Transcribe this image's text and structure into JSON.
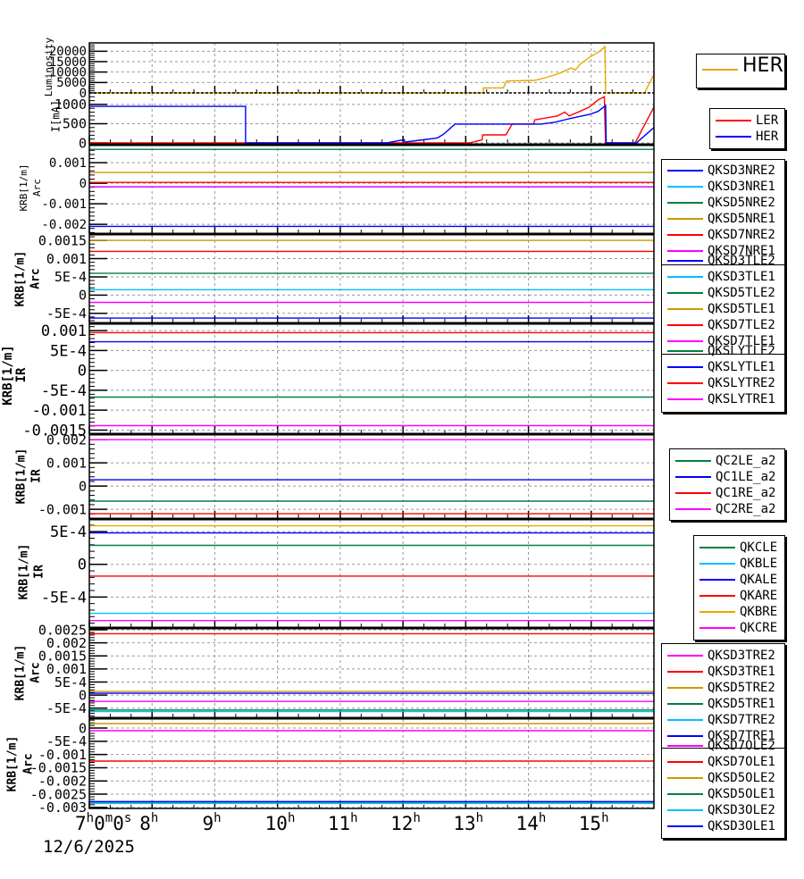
{
  "chart_data": {
    "type": "line",
    "x_axis": {
      "unit": "h",
      "xlim": [
        7,
        16
      ],
      "ticks": [
        7,
        8,
        9,
        10,
        11,
        12,
        13,
        14,
        15
      ],
      "tick_labels": [
        "7h0m0s",
        "8h",
        "9h",
        "10h",
        "11h",
        "12h",
        "13h",
        "14h",
        "15h"
      ],
      "date": "12/6/2025",
      "grid": true
    },
    "panels": [
      {
        "ylabel": [
          "Luminosity"
        ],
        "ylim": [
          0,
          24000
        ],
        "yticks": [
          0,
          5000,
          10000,
          15000,
          20000
        ],
        "ytick_labels": [
          "0",
          "5000",
          "10000",
          "15000",
          "20000"
        ],
        "grid": true,
        "series": [
          {
            "name": "HER",
            "color": "#e6a800",
            "points": [
              [
                7,
                0
              ],
              [
                13.05,
                0
              ],
              [
                13.07,
                200
              ],
              [
                13.1,
                0
              ],
              [
                13.28,
                0
              ],
              [
                13.28,
                2400
              ],
              [
                13.6,
                2400
              ],
              [
                13.65,
                5700
              ],
              [
                14.1,
                6000
              ],
              [
                14.3,
                7500
              ],
              [
                14.5,
                9500
              ],
              [
                14.68,
                11900
              ],
              [
                14.75,
                11000
              ],
              [
                14.82,
                13700
              ],
              [
                14.97,
                17000
              ],
              [
                15.14,
                20000
              ],
              [
                15.22,
                22200
              ],
              [
                15.23,
                0
              ],
              [
                15.85,
                0
              ],
              [
                16,
                8800
              ]
            ]
          }
        ]
      },
      {
        "ylabel": [
          "I[mA]"
        ],
        "ylim": [
          0,
          1300
        ],
        "yticks": [
          0,
          500,
          1000
        ],
        "ytick_labels": [
          "0",
          "500",
          "1000"
        ],
        "grid": true,
        "series": [
          {
            "name": "LER",
            "color": "#ff0000",
            "points": [
              [
                7,
                0
              ],
              [
                13.06,
                0
              ],
              [
                13.26,
                80
              ],
              [
                13.27,
                210
              ],
              [
                13.64,
                210
              ],
              [
                13.74,
                490
              ],
              [
                14.08,
                490
              ],
              [
                14.1,
                600
              ],
              [
                14.46,
                700
              ],
              [
                14.58,
                800
              ],
              [
                14.65,
                700
              ],
              [
                14.82,
                820
              ],
              [
                14.97,
                930
              ],
              [
                15.11,
                1120
              ],
              [
                15.21,
                1200
              ],
              [
                15.23,
                0
              ],
              [
                15.7,
                0
              ],
              [
                16,
                930
              ]
            ]
          },
          {
            "name": "HER",
            "color": "#0000ff",
            "points": [
              [
                7,
                950
              ],
              [
                9.49,
                950
              ],
              [
                9.49,
                0
              ],
              [
                11.74,
                0
              ],
              [
                12.02,
                85
              ],
              [
                12.03,
                20
              ],
              [
                12.26,
                70
              ],
              [
                12.55,
                130
              ],
              [
                12.65,
                230
              ],
              [
                12.76,
                390
              ],
              [
                12.83,
                490
              ],
              [
                14.2,
                490
              ],
              [
                14.43,
                540
              ],
              [
                14.68,
                640
              ],
              [
                14.97,
                740
              ],
              [
                15.11,
                820
              ],
              [
                15.23,
                970
              ],
              [
                15.24,
                0
              ],
              [
                15.72,
                0
              ],
              [
                16,
                400
              ]
            ]
          }
        ]
      },
      {
        "ylabel": [
          "KRB[1/m]",
          "Arc"
        ],
        "ylim": [
          -0.00243,
          0.0017
        ],
        "yticks": [
          -0.002,
          -0.001,
          0,
          0.001
        ],
        "ytick_labels": [
          "-0.002",
          "-0.001",
          "0",
          "0.001"
        ],
        "grid": true,
        "series": [
          {
            "name": "QKSD3NRE2",
            "color": "#0000ff",
            "points": [
              [
                7,
                -0.0021
              ],
              [
                16,
                -0.0021
              ]
            ]
          },
          {
            "name": "QKSD3NRE1",
            "color": "#00bfff",
            "points": [
              [
                7,
                -0.00017
              ],
              [
                16,
                -0.00017
              ]
            ]
          },
          {
            "name": "QKSD5NRE2",
            "color": "#008040",
            "points": [
              [
                7,
                0.00165
              ],
              [
                16,
                0.00165
              ]
            ]
          },
          {
            "name": "QKSD5NRE1",
            "color": "#cc9900",
            "points": [
              [
                7,
                0.00052
              ],
              [
                16,
                0.00052
              ]
            ]
          },
          {
            "name": "QKSD7NRE2",
            "color": "#ff0000",
            "points": [
              [
                7,
                4e-05
              ],
              [
                16,
                4e-05
              ]
            ]
          },
          {
            "name": "QKSD7NRE1",
            "color": "#ff00ff",
            "points": [
              [
                7,
                -0.00018
              ],
              [
                16,
                -0.00018
              ]
            ]
          }
        ]
      },
      {
        "ylabel": [
          "KRB[1/m]",
          "Arc"
        ],
        "ylim": [
          -0.00075,
          0.00165
        ],
        "yticks": [
          -0.0005,
          0,
          0.0005,
          0.001,
          0.0015
        ],
        "ytick_labels": [
          "-5E-4",
          "0",
          "5E-4",
          "0.001",
          "0.0015"
        ],
        "grid": true,
        "series": [
          {
            "name": "QKSD3TLE2",
            "color": "#0000ff",
            "points": [
              [
                7,
                -0.00063
              ],
              [
                16,
                -0.00063
              ]
            ]
          },
          {
            "name": "QKSD3TLE1",
            "color": "#00bfff",
            "points": [
              [
                7,
                0.00015
              ],
              [
                16,
                0.00015
              ]
            ]
          },
          {
            "name": "QKSD5TLE2",
            "color": "#008040",
            "points": [
              [
                7,
                0.0006
              ],
              [
                16,
                0.0006
              ]
            ]
          },
          {
            "name": "QKSD5TLE1",
            "color": "#cc9900",
            "points": [
              [
                7,
                0.0015
              ],
              [
                16,
                0.0015
              ]
            ]
          },
          {
            "name": "QKSD7TLE2",
            "color": "#ff0000",
            "points": [
              [
                7,
                0.0012
              ],
              [
                16,
                0.0012
              ]
            ]
          },
          {
            "name": "QKSD7TLE1",
            "color": "#ff00ff",
            "points": [
              [
                7,
                -0.0002
              ],
              [
                16,
                -0.0002
              ]
            ]
          }
        ]
      },
      {
        "ylabel": [
          "KRB[1/m]",
          "IR"
        ],
        "ylim": [
          -0.00158,
          0.00116
        ],
        "yticks": [
          -0.0015,
          -0.001,
          -0.0005,
          0,
          0.0005,
          0.001
        ],
        "ytick_labels": [
          "-0.0015",
          "-0.001",
          "-5E-4",
          "0",
          "5E-4",
          "0.001"
        ],
        "grid": true,
        "series": [
          {
            "name": "QKSLYTLE2",
            "color": "#008040",
            "points": [
              [
                7,
                -0.00067
              ],
              [
                16,
                -0.00067
              ]
            ]
          },
          {
            "name": "QKSLYTLE1",
            "color": "#0000ff",
            "points": [
              [
                7,
                0.00072
              ],
              [
                16,
                0.00072
              ]
            ]
          },
          {
            "name": "QKSLYTRE2",
            "color": "#ff0000",
            "points": [
              [
                7,
                0.00095
              ],
              [
                16,
                0.00095
              ]
            ]
          },
          {
            "name": "QKSLYTRE1",
            "color": "#ff00ff",
            "points": [
              [
                7,
                -0.00139
              ],
              [
                16,
                -0.00139
              ]
            ]
          }
        ]
      },
      {
        "ylabel": [
          "KRB[1/m]",
          "IR"
        ],
        "ylim": [
          -0.00138,
          0.0022
        ],
        "yticks": [
          -0.001,
          0,
          0.001,
          0.002
        ],
        "ytick_labels": [
          "-0.001",
          "0",
          "0.001",
          "0.002"
        ],
        "grid": true,
        "series": [
          {
            "name": "QC2LE_a2",
            "color": "#008040",
            "points": [
              [
                7,
                -0.00065
              ],
              [
                16,
                -0.00065
              ]
            ]
          },
          {
            "name": "QC1LE_a2",
            "color": "#0000ff",
            "points": [
              [
                7,
                0.00027
              ],
              [
                16,
                0.00027
              ]
            ]
          },
          {
            "name": "QC1RE_a2",
            "color": "#ff0000",
            "points": [
              [
                7,
                -0.00119
              ],
              [
                16,
                -0.00119
              ]
            ]
          },
          {
            "name": "QC2RE_a2",
            "color": "#ff00ff",
            "points": [
              [
                7,
                0.002
              ],
              [
                16,
                0.002
              ]
            ]
          }
        ]
      },
      {
        "ylabel": [
          "KRB[1/m]",
          "IR"
        ],
        "ylim": [
          -0.00096,
          0.00068
        ],
        "yticks": [
          -0.0005,
          0,
          0.0005
        ],
        "ytick_labels": [
          "-5E-4",
          "0",
          "5E-4"
        ],
        "grid": true,
        "series": [
          {
            "name": "QKCLE",
            "color": "#008040",
            "points": [
              [
                7,
                0.00029
              ],
              [
                16,
                0.00029
              ]
            ]
          },
          {
            "name": "QKBLE",
            "color": "#00bfff",
            "points": [
              [
                7,
                -0.00075
              ],
              [
                16,
                -0.00075
              ]
            ]
          },
          {
            "name": "QKALE",
            "color": "#0000ff",
            "points": [
              [
                7,
                0.00048
              ],
              [
                16,
                0.00048
              ]
            ]
          },
          {
            "name": "QKARE",
            "color": "#ff0000",
            "points": [
              [
                7,
                -0.00018
              ],
              [
                16,
                -0.00018
              ]
            ]
          },
          {
            "name": "QKBRE",
            "color": "#e6a800",
            "points": [
              [
                7,
                0.00059
              ],
              [
                16,
                0.00059
              ]
            ]
          },
          {
            "name": "QKCRE",
            "color": "#ff00ff",
            "points": [
              [
                7,
                -0.00086
              ],
              [
                16,
                -0.00086
              ]
            ]
          }
        ]
      },
      {
        "ylabel": [
          "KRB[1/m]",
          "Arc"
        ],
        "ylim": [
          -0.00085,
          0.00257
        ],
        "yticks": [
          -0.0005,
          0,
          0.0005,
          0.001,
          0.0015,
          0.002,
          0.0025
        ],
        "ytick_labels": [
          "-5E-4",
          "0",
          "5E-4",
          "0.001",
          "0.0015",
          "0.002",
          "0.0025"
        ],
        "grid": true,
        "series": [
          {
            "name": "QKSD3TRE2",
            "color": "#ff00ff",
            "points": [
              [
                7,
                -0.00024
              ],
              [
                16,
                -0.00024
              ]
            ]
          },
          {
            "name": "QKSD3TRE1",
            "color": "#ff0000",
            "points": [
              [
                7,
                0.00235
              ],
              [
                16,
                0.00235
              ]
            ]
          },
          {
            "name": "QKSD5TRE2",
            "color": "#cc9900",
            "points": [
              [
                7,
                0.00014
              ],
              [
                16,
                0.00014
              ]
            ]
          },
          {
            "name": "QKSD5TRE1",
            "color": "#008040",
            "points": [
              [
                7,
                -0.00057
              ],
              [
                16,
                -0.00057
              ]
            ]
          },
          {
            "name": "QKSD7TRE2",
            "color": "#00bfff",
            "points": [
              [
                7,
                -0.00063
              ],
              [
                16,
                -0.00063
              ]
            ]
          },
          {
            "name": "QKSD7TRE1",
            "color": "#0000ff",
            "points": [
              [
                7,
                7e-05
              ],
              [
                16,
                7e-05
              ]
            ]
          }
        ]
      },
      {
        "ylabel": [
          "KRB[1/m]",
          "Arc"
        ],
        "ylim": [
          -0.00304,
          0.00034
        ],
        "yticks": [
          -0.003,
          -0.0025,
          -0.002,
          -0.0015,
          -0.001,
          -0.0005,
          0
        ],
        "ytick_labels": [
          "-0.003",
          "-0.0025",
          "-0.002",
          "-0.0015",
          "-0.001",
          "-5E-4",
          "0"
        ],
        "grid": true,
        "series": [
          {
            "name": "QKSD7OLE2",
            "color": "#ff00ff",
            "points": [
              [
                7,
                -0.0001
              ],
              [
                16,
                -0.0001
              ]
            ]
          },
          {
            "name": "QKSD7OLE1",
            "color": "#ff0000",
            "points": [
              [
                7,
                -0.00125
              ],
              [
                16,
                -0.00125
              ]
            ]
          },
          {
            "name": "QKSD5OLE2",
            "color": "#cc9900",
            "points": [
              [
                7,
                0.00017
              ],
              [
                16,
                0.00017
              ]
            ]
          },
          {
            "name": "QKSD5OLE1",
            "color": "#008040",
            "points": [
              [
                7,
                -0.0028
              ],
              [
                16,
                -0.0028
              ]
            ]
          },
          {
            "name": "QKSD3OLE2",
            "color": "#00bfff",
            "points": [
              [
                7,
                -0.00285
              ],
              [
                16,
                -0.00285
              ]
            ]
          },
          {
            "name": "QKSD3OLE1",
            "color": "#0000ff",
            "points": [
              [
                7,
                -0.00278
              ],
              [
                16,
                -0.00278
              ]
            ]
          }
        ]
      }
    ]
  }
}
